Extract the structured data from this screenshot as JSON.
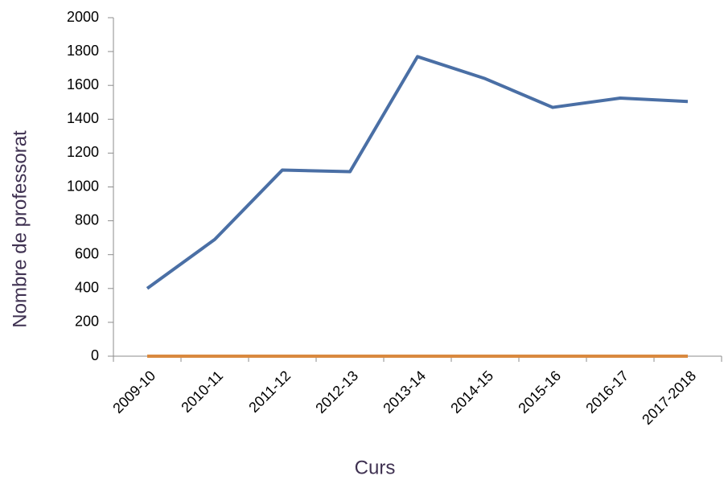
{
  "chart_data": {
    "type": "line",
    "x_label": "Curs",
    "y_label": "Nombre de professorat",
    "categories": [
      "2009-10",
      "2010-11",
      "2011-12",
      "2012-13",
      "2013-14",
      "2014-15",
      "2015-16",
      "2016-17",
      "2017-2018"
    ],
    "series": [
      {
        "color": "#4a6fa5",
        "values": [
          400,
          690,
          1100,
          1090,
          1770,
          1640,
          1470,
          1525,
          1505
        ]
      },
      {
        "color": "#d9893f",
        "values": [
          0,
          0,
          0,
          0,
          0,
          0,
          0,
          0,
          0
        ]
      }
    ],
    "ylim": [
      0,
      2000
    ],
    "yticks": [
      0,
      200,
      400,
      600,
      800,
      1000,
      1200,
      1400,
      1600,
      1800,
      2000
    ],
    "grid": false
  }
}
